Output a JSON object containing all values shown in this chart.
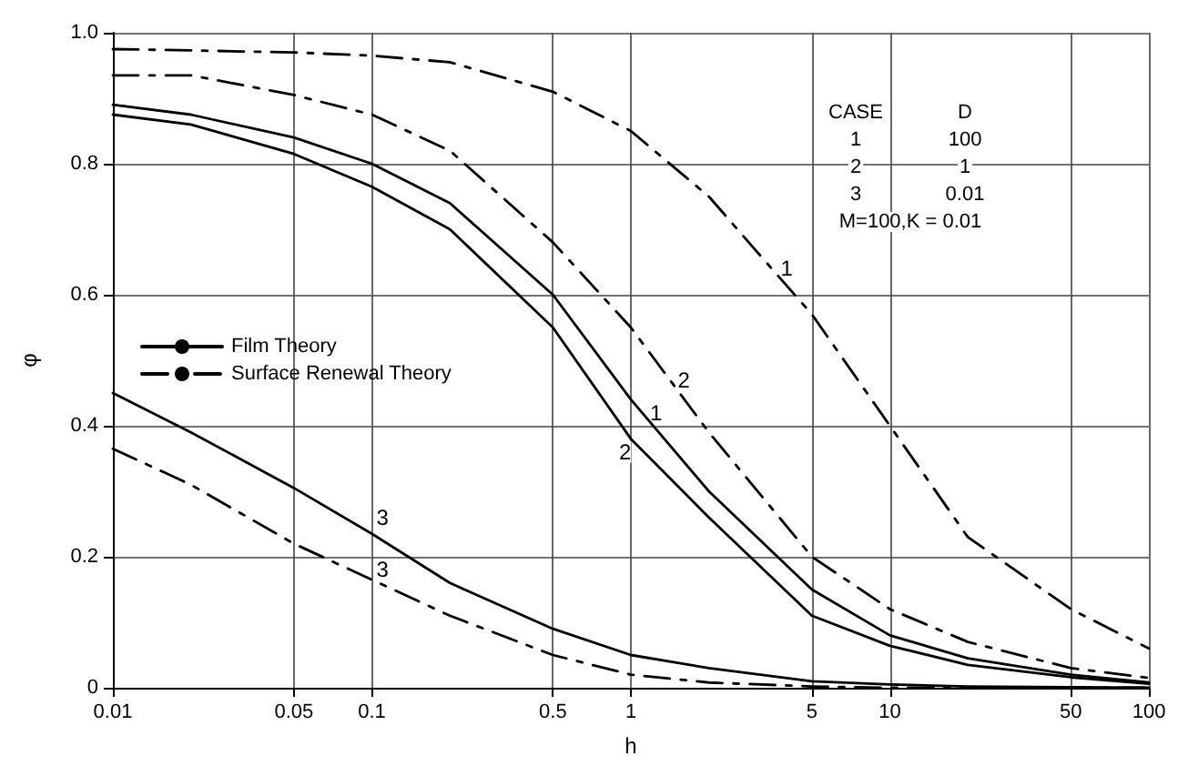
{
  "chart_data": {
    "type": "line",
    "xlabel": "h",
    "ylabel": "φ",
    "log": "x",
    "grid": true,
    "legend": "left",
    "marker": "none",
    "xlim": [
      0.01,
      100
    ],
    "xticks": [
      0.01,
      0.05,
      0.1,
      0.5,
      1,
      5,
      10,
      50,
      100
    ],
    "ylim": [
      0,
      1
    ],
    "yticks": [
      0,
      0.2,
      0.4,
      0.6,
      0.8,
      {
        "value": 1,
        "label": "1.0"
      }
    ],
    "series": [
      {
        "name": "Film Theory",
        "color": "#000000",
        "line_style": "solid",
        "x": [
          0.01,
          0.02,
          0.05,
          0.1,
          0.2,
          0.5,
          1,
          2,
          5,
          10,
          20,
          50,
          100
        ],
        "values": [
          0.89,
          0.875,
          0.84,
          0.8,
          0.74,
          0.6,
          0.44,
          0.3,
          0.15,
          0.08,
          0.045,
          0.02,
          0.008
        ]
      },
      {
        "color": "#000000",
        "line_style": "solid",
        "x": [
          0.01,
          0.02,
          0.05,
          0.1,
          0.2,
          0.5,
          1,
          2,
          5,
          10,
          20,
          50,
          100
        ],
        "values": [
          0.875,
          0.86,
          0.815,
          0.765,
          0.7,
          0.55,
          0.38,
          0.26,
          0.11,
          0.064,
          0.035,
          0.016,
          0.006
        ]
      },
      {
        "color": "#000000",
        "line_style": "solid",
        "x": [
          0.01,
          0.02,
          0.05,
          0.1,
          0.2,
          0.5,
          1,
          2,
          5,
          10,
          20,
          50,
          100
        ],
        "values": [
          0.45,
          0.39,
          0.305,
          0.235,
          0.16,
          0.09,
          0.05,
          0.03,
          0.01,
          0.005,
          0.002,
          0.001,
          0
        ]
      },
      {
        "name": "Surface Renewal Theory",
        "color": "#000000",
        "line_style": "dashed",
        "x": [
          0.01,
          0.02,
          0.05,
          0.1,
          0.2,
          0.5,
          1,
          2,
          3,
          5,
          10,
          20,
          50,
          100
        ],
        "values": [
          0.975,
          0.973,
          0.97,
          0.965,
          0.955,
          0.91,
          0.85,
          0.75,
          0.67,
          0.57,
          0.4,
          0.23,
          0.12,
          0.06
        ]
      },
      {
        "color": "#000000",
        "line_style": "dashed",
        "x": [
          0.01,
          0.02,
          0.05,
          0.1,
          0.2,
          0.5,
          1,
          2,
          5,
          10,
          20,
          50,
          100
        ],
        "values": [
          0.935,
          0.935,
          0.905,
          0.875,
          0.82,
          0.68,
          0.55,
          0.39,
          0.2,
          0.12,
          0.07,
          0.03,
          0.015
        ]
      },
      {
        "color": "#000000",
        "line_style": "dashed",
        "x": [
          0.01,
          0.02,
          0.05,
          0.1,
          0.2,
          0.5,
          1,
          2,
          5,
          10,
          100
        ],
        "values": [
          0.365,
          0.31,
          0.22,
          0.165,
          0.11,
          0.05,
          0.02,
          0.008,
          0.002,
          0,
          0
        ]
      }
    ],
    "annotations": [
      {
        "text": "1",
        "x": 4,
        "y": 0.64
      },
      {
        "text": "2",
        "x": 1.6,
        "y": 0.47
      },
      {
        "text": "1",
        "x": 1.25,
        "y": 0.42
      },
      {
        "text": "2",
        "x": 0.95,
        "y": 0.36
      },
      {
        "text": "3",
        "x": 0.11,
        "y": 0.26
      },
      {
        "text": "3",
        "x": 0.11,
        "y": 0.18
      },
      "CASE",
      "D",
      "1",
      "100",
      "2",
      "1",
      "3",
      "0.01",
      "M=100,K = 0.01"
    ]
  }
}
